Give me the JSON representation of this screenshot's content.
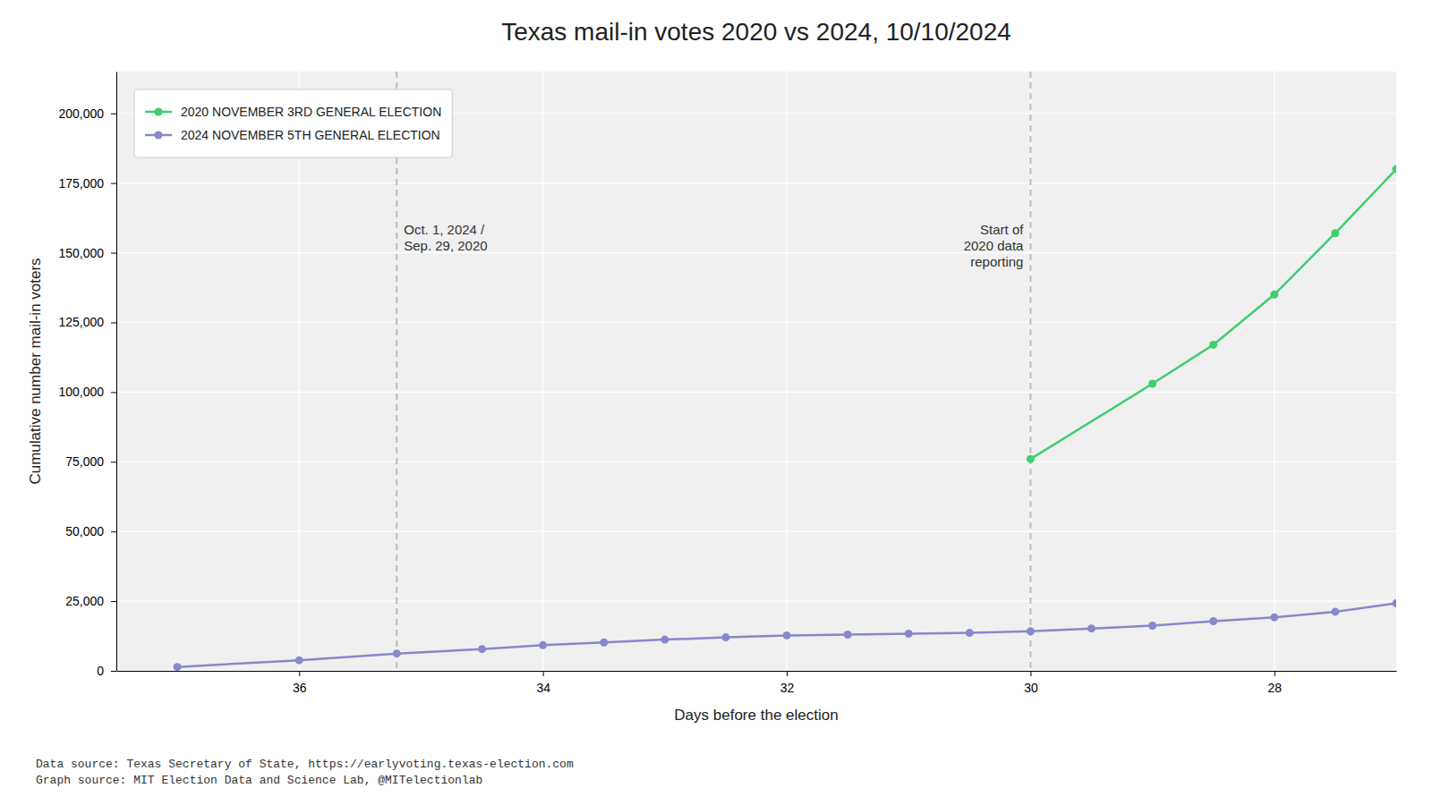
{
  "chart_data": {
    "type": "line",
    "title": "Texas mail-in votes 2020 vs 2024, 10/10/2024",
    "x_label": "Days before the election",
    "y_label": "Cumulative number mail-in voters",
    "series": [
      {
        "name": "2020 NOVEMBER 3RD GENERAL ELECTION",
        "color": "#3ecf6e",
        "marker": "circle",
        "x": [
          30,
          29,
          28.5,
          28,
          27.5,
          27
        ],
        "values": [
          76000,
          103000,
          117000,
          135000,
          157000,
          180000
        ]
      },
      {
        "name": "2024 NOVEMBER 5TH GENERAL ELECTION",
        "color": "#8888cc",
        "marker": "circle",
        "x": [
          37,
          36,
          35.2,
          34.5,
          34,
          33.5,
          33,
          32.5,
          32,
          31.5,
          31,
          30.5,
          30,
          29.5,
          29,
          28.5,
          28,
          27.5,
          27
        ],
        "values": [
          1400,
          3800,
          6200,
          7800,
          9200,
          10200,
          11200,
          12000,
          12700,
          13000,
          13300,
          13600,
          14200,
          15200,
          16200,
          17800,
          19200,
          21200,
          24200
        ]
      }
    ],
    "xlim": [
      37.5,
      27.0
    ],
    "ylim": [
      0,
      215000
    ],
    "xticks": [
      28,
      30,
      32,
      34,
      36
    ],
    "yticks": [
      0,
      {
        "value": 25000,
        "label": "25,000"
      },
      {
        "value": 50000,
        "label": "50,000"
      },
      {
        "value": 75000,
        "label": "75,000"
      },
      {
        "value": 100000,
        "label": "100,000"
      },
      {
        "value": 125000,
        "label": "125,000"
      },
      {
        "value": 150000,
        "label": "150,000"
      },
      {
        "value": 175000,
        "label": "175,000"
      },
      {
        "value": 200000,
        "label": "200,000"
      }
    ],
    "grid": true,
    "legend": "upper left",
    "annotations": [
      {
        "x": 35.2,
        "text": "Oct. 1, 2024 /\nSep. 29, 2020"
      },
      {
        "x": 30,
        "text": "Start of\n2020 data\nreporting"
      }
    ],
    "source": "Data source: Texas Secretary of State, https://earlyvoting.texas-election.com\nGraph source: MIT Election Data and Science Lab, @MITelectionlab"
  }
}
